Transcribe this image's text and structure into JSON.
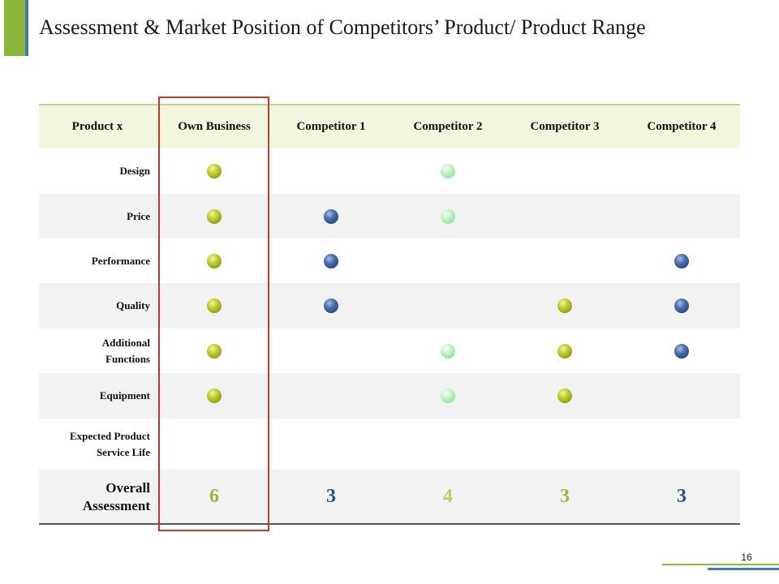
{
  "slide": {
    "title": "Assessment & Market Position of Competitors’ Product/ Product Range",
    "page_number": "16"
  },
  "table": {
    "corner_header": "Product x",
    "columns": [
      "Own Business",
      "Competitor 1",
      "Competitor 2",
      "Competitor 3",
      "Competitor 4"
    ],
    "rows": [
      {
        "label": [
          "Design"
        ],
        "marks": [
          "lime",
          null,
          "mint",
          null,
          null
        ]
      },
      {
        "label": [
          "Price"
        ],
        "marks": [
          "lime",
          "navy",
          "mint",
          null,
          null
        ]
      },
      {
        "label": [
          "Performance"
        ],
        "marks": [
          "lime",
          "navy",
          null,
          null,
          "navy"
        ]
      },
      {
        "label": [
          "Quality"
        ],
        "marks": [
          "lime",
          "navy",
          null,
          "lime",
          "navy"
        ]
      },
      {
        "label": [
          "Additional",
          "Functions"
        ],
        "marks": [
          "lime",
          null,
          "mint",
          "lime",
          "navy"
        ]
      },
      {
        "label": [
          "Equipment"
        ],
        "marks": [
          "lime",
          null,
          "mint",
          "lime",
          null
        ]
      },
      {
        "label": [
          "Expected Product",
          "Service Life"
        ],
        "marks": [
          null,
          null,
          null,
          null,
          null
        ]
      }
    ],
    "overall": {
      "label": [
        "Overall",
        "Assessment"
      ],
      "scores": [
        "6",
        "3",
        "4",
        "3",
        "3"
      ],
      "score_colors": [
        "#9ab83a",
        "#2e4f86",
        "#a9d66a",
        "#9ab83a",
        "#2e4f86"
      ]
    },
    "highlighted_column": "Own Business"
  },
  "colors": {
    "accent_green": "#8db63c",
    "accent_blue": "#3b7fa6",
    "header_fill": "#f2f6dc",
    "highlight_border": "#c0392b"
  }
}
